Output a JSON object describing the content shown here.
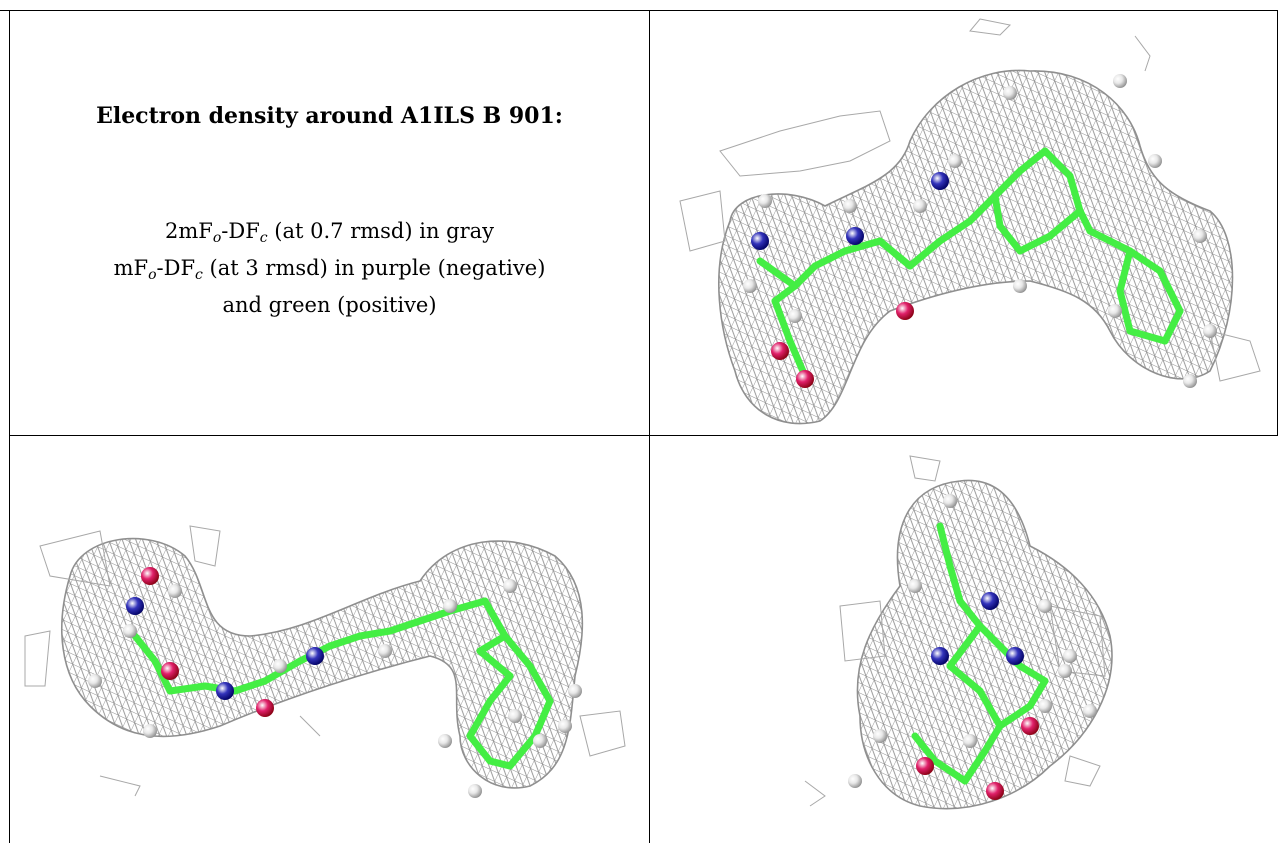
{
  "title": "Electron density around A1ILS B 901:",
  "legend": {
    "line1_prefix": "2mF",
    "line1_sub1": "o",
    "line1_mid": "-DF",
    "line1_sub2": "c",
    "line1_suffix": " (at 0.7 rmsd) in gray",
    "line2_prefix": "mF",
    "line2_sub1": "o",
    "line2_mid": "-DF",
    "line2_sub2": "c",
    "line2_suffix": " (at 3 rmsd) in purple (negative)",
    "line3": "and green (positive)"
  },
  "colors": {
    "mesh": "#8a8a8a",
    "carbon": "#44ee44",
    "nitrogen": "#3333bb",
    "oxygen": "#e0206a",
    "hydrogen": "#e8e8e8"
  },
  "views": [
    "view-top-right",
    "view-bottom-left",
    "view-bottom-right"
  ]
}
